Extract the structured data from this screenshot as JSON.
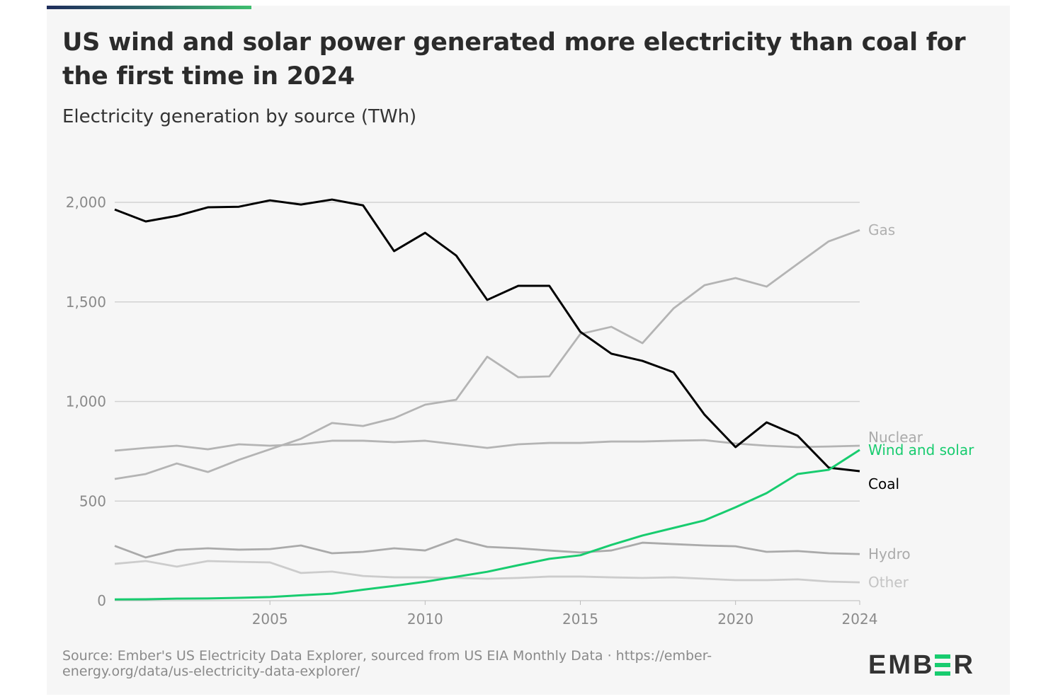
{
  "title": "US wind and solar power generated more electricity than coal for the first time in 2024",
  "subtitle": "Electricity generation by source (TWh)",
  "source": "Source: Ember's US Electricity Data Explorer, sourced from US EIA Monthly Data · https://ember-energy.org/data/us-electricity-data-explorer/",
  "logo": {
    "text": "EMBER",
    "before": "EMB",
    "after": "R",
    "color": "#18cc6f"
  },
  "colors": {
    "accent_bar_start": "#1f2d5c",
    "accent_bar_end": "#3fbf6f"
  },
  "chart_data": {
    "type": "line",
    "title": "US wind and solar power generated more electricity than coal for the first time in 2024",
    "subtitle": "Electricity generation by source (TWh)",
    "xlim": [
      2000,
      2024
    ],
    "ylim": [
      0,
      2000
    ],
    "x_ticks": [
      2005,
      2010,
      2015,
      2020,
      2024
    ],
    "y_ticks": [
      0,
      500,
      1000,
      1500,
      2000
    ],
    "y_tick_labels": [
      "0",
      "500",
      "1,000",
      "1,500",
      "2,000"
    ],
    "grid": "horizontal",
    "legend": "direct labels at right end of lines",
    "x": [
      2000,
      2001,
      2002,
      2003,
      2004,
      2005,
      2006,
      2007,
      2008,
      2009,
      2010,
      2011,
      2012,
      2013,
      2014,
      2015,
      2016,
      2017,
      2018,
      2019,
      2020,
      2021,
      2022,
      2023,
      2024
    ],
    "series": [
      {
        "name": "Gas",
        "color": "#b4b4b4",
        "values": [
          611,
          636,
          689,
          646,
          707,
          760,
          813,
          892,
          877,
          916,
          984,
          1009,
          1225,
          1122,
          1126,
          1339,
          1375,
          1293,
          1467,
          1584,
          1620,
          1577,
          1691,
          1804,
          1861
        ]
      },
      {
        "name": "Nuclear",
        "color": "#b4b4b4",
        "values": [
          753,
          767,
          778,
          760,
          785,
          778,
          785,
          803,
          803,
          796,
          803,
          785,
          767,
          785,
          792,
          792,
          799,
          799,
          803,
          806,
          789,
          778,
          771,
          774,
          778
        ]
      },
      {
        "name": "Hydro",
        "color": "#aaaaaa",
        "values": [
          275,
          217,
          255,
          263,
          256,
          259,
          277,
          238,
          245,
          263,
          252,
          309,
          270,
          263,
          252,
          242,
          252,
          291,
          284,
          277,
          273,
          245,
          249,
          238,
          234
        ]
      },
      {
        "name": "Other",
        "color": "#cccccc",
        "values": [
          185,
          199,
          171,
          199,
          195,
          192,
          139,
          146,
          124,
          117,
          117,
          114,
          110,
          114,
          121,
          121,
          117,
          114,
          117,
          110,
          103,
          103,
          107,
          96,
          92
        ]
      },
      {
        "name": "Coal",
        "color": "#000000",
        "values": [
          1964,
          1904,
          1932,
          1975,
          1978,
          2010,
          1989,
          2014,
          1985,
          1755,
          1847,
          1733,
          1510,
          1581,
          1581,
          1350,
          1240,
          1204,
          1147,
          934,
          771,
          895,
          828,
          668,
          650
        ]
      },
      {
        "name": "Wind and solar",
        "color": "#18cc6f",
        "values": [
          6,
          7,
          10,
          11,
          14,
          18,
          27,
          35,
          55,
          74,
          95,
          120,
          145,
          178,
          210,
          228,
          280,
          327,
          365,
          403,
          469,
          540,
          636,
          657,
          757
        ]
      }
    ]
  }
}
